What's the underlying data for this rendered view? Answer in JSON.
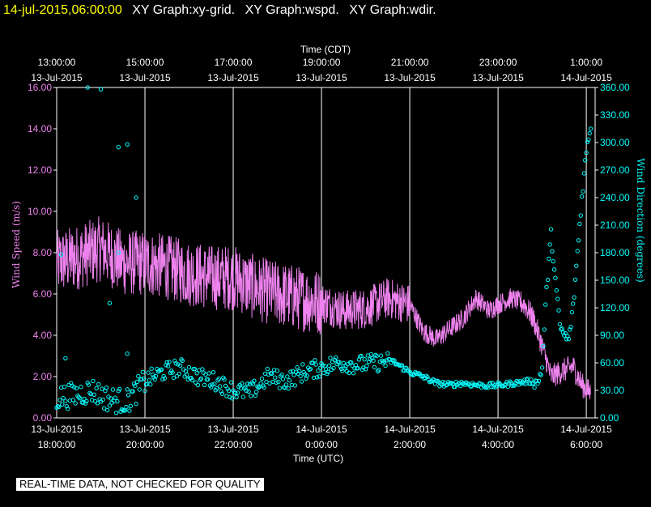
{
  "header": {
    "timestamp": "14-jul-2015,06:00:00",
    "titles": [
      "XY Graph:xy-grid.",
      "XY Graph:wspd.",
      "XY Graph:wdir."
    ]
  },
  "disclaimer": "REAL-TIME DATA, NOT CHECKED FOR QUALITY",
  "colors": {
    "wind_speed": "#ee82ee",
    "wind_direction": "#00ffff",
    "grid": "#ffffff",
    "background": "#000000"
  },
  "chart_data": {
    "type": "line",
    "top_axis": {
      "title": "Time (CDT)",
      "ticks": [
        {
          "time": "13:00:00",
          "date": "13-Jul-2015"
        },
        {
          "time": "15:00:00",
          "date": "13-Jul-2015"
        },
        {
          "time": "17:00:00",
          "date": "13-Jul-2015"
        },
        {
          "time": "19:00:00",
          "date": "13-Jul-2015"
        },
        {
          "time": "21:00:00",
          "date": "13-Jul-2015"
        },
        {
          "time": "23:00:00",
          "date": "13-Jul-2015"
        },
        {
          "time": "1:00:00",
          "date": "14-Jul-2015"
        }
      ]
    },
    "bottom_axis": {
      "title": "Time (UTC)",
      "ticks": [
        {
          "date": "13-Jul-2015",
          "time": "18:00:00"
        },
        {
          "date": "13-Jul-2015",
          "time": "20:00:00"
        },
        {
          "date": "13-Jul-2015",
          "time": "22:00:00"
        },
        {
          "date": "14-Jul-2015",
          "time": "0:00:00"
        },
        {
          "date": "14-Jul-2015",
          "time": "2:00:00"
        },
        {
          "date": "14-Jul-2015",
          "time": "4:00:00"
        },
        {
          "date": "14-Jul-2015",
          "time": "6:00:00"
        }
      ]
    },
    "xlim_hours_utc": [
      18,
      30.2
    ],
    "left_axis": {
      "title": "Wind Speed (m/s)",
      "ylim": [
        0,
        16
      ],
      "ticks": [
        "0.00",
        "2.00",
        "4.00",
        "6.00",
        "8.00",
        "10.00",
        "12.00",
        "14.00",
        "16.00"
      ]
    },
    "right_axis": {
      "title": "Wind Direction (degrees)",
      "ylim": [
        0,
        360
      ],
      "ticks": [
        "0.00",
        "30.00",
        "60.00",
        "90.00",
        "120.00",
        "150.00",
        "180.00",
        "210.00",
        "240.00",
        "270.00",
        "300.00",
        "330.00",
        "360.00"
      ]
    },
    "grid": true,
    "series": [
      {
        "name": "Wind Speed (m/s)",
        "kind": "line",
        "axis": "left",
        "x_hours_utc": [
          18.0,
          18.5,
          19.0,
          19.5,
          20.0,
          20.5,
          21.0,
          21.5,
          22.0,
          22.5,
          23.0,
          23.5,
          24.0,
          24.5,
          25.0,
          25.5,
          26.0,
          26.3,
          26.6,
          26.9,
          27.2,
          27.5,
          27.8,
          28.0,
          28.3,
          28.6,
          28.8,
          29.0,
          29.2,
          29.5,
          29.7,
          29.9,
          30.1
        ],
        "values": [
          7.5,
          7.8,
          8.2,
          7.5,
          7.5,
          7.3,
          7.0,
          6.8,
          6.8,
          6.3,
          6.0,
          5.8,
          5.6,
          5.2,
          5.3,
          5.8,
          5.5,
          4.2,
          3.8,
          4.3,
          4.8,
          5.8,
          5.2,
          5.5,
          5.8,
          5.5,
          4.8,
          3.5,
          2.0,
          2.3,
          2.5,
          1.6,
          1.2
        ]
      },
      {
        "name": "Wind Direction (degrees)",
        "kind": "scatter",
        "axis": "right",
        "x_hours_utc": [
          18.0,
          18.4,
          18.8,
          19.2,
          19.6,
          20.0,
          20.4,
          20.8,
          21.2,
          21.6,
          22.0,
          22.4,
          22.8,
          23.2,
          23.6,
          24.0,
          24.4,
          24.8,
          25.2,
          25.6,
          26.0,
          26.3,
          26.6,
          26.9,
          27.2,
          27.5,
          27.8,
          28.1,
          28.4,
          28.7,
          28.9,
          29.0,
          29.1,
          29.2,
          29.3,
          29.4,
          29.5,
          29.6,
          29.7,
          29.8,
          29.9,
          30.0,
          30.1
        ],
        "values": [
          22,
          25,
          30,
          20,
          18,
          40,
          50,
          55,
          45,
          40,
          30,
          28,
          45,
          40,
          50,
          55,
          60,
          58,
          60,
          62,
          50,
          45,
          38,
          36,
          38,
          36,
          35,
          36,
          38,
          40,
          38,
          55,
          140,
          200,
          150,
          100,
          90,
          85,
          120,
          180,
          240,
          290,
          320
        ]
      }
    ],
    "scattered_outliers_direction": [
      {
        "x": 18.7,
        "y": 360
      },
      {
        "x": 19.0,
        "y": 358
      },
      {
        "x": 19.4,
        "y": 295
      },
      {
        "x": 19.6,
        "y": 298
      },
      {
        "x": 19.2,
        "y": 125
      },
      {
        "x": 19.6,
        "y": 70
      },
      {
        "x": 18.2,
        "y": 65
      },
      {
        "x": 19.8,
        "y": 240
      },
      {
        "x": 18.1,
        "y": 178
      },
      {
        "x": 19.4,
        "y": 180
      }
    ]
  }
}
